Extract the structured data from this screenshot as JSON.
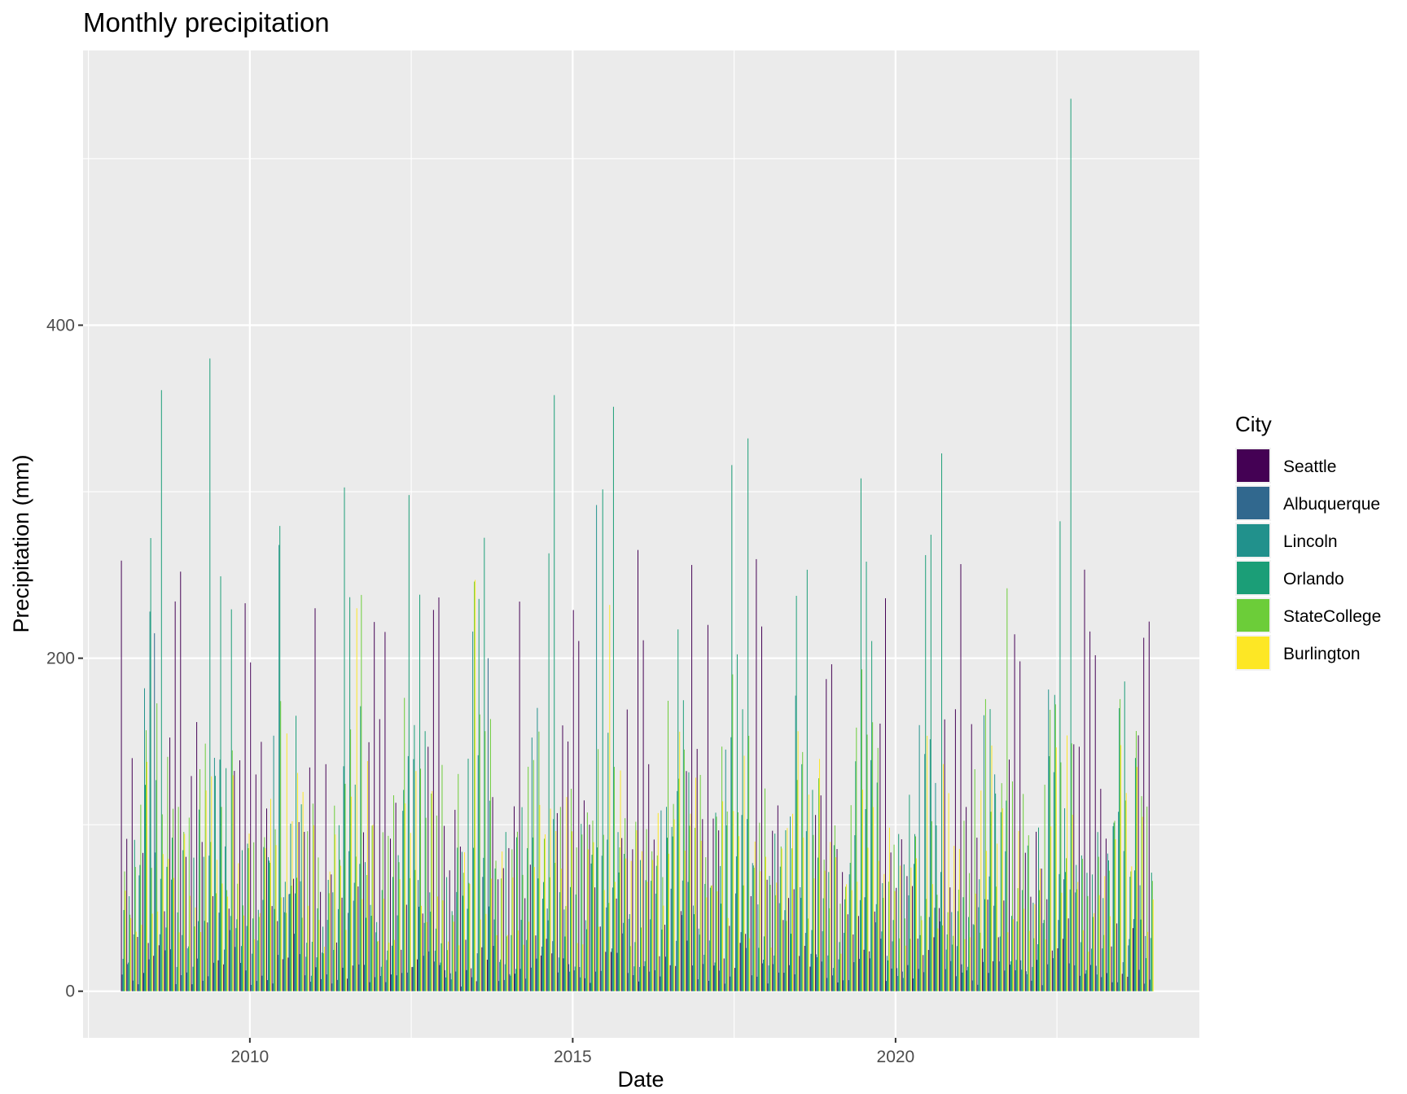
{
  "chart_data": {
    "type": "bar",
    "title": "Monthly precipitation",
    "xlabel": "Date",
    "ylabel": "Precipitation (mm)",
    "x_ticks": [
      "2010",
      "2015",
      "2020"
    ],
    "y_ticks": [
      "0",
      "200",
      "400"
    ],
    "ylim": [
      -28,
      565
    ],
    "xlim": [
      "2007-06-01",
      "2024-09-15"
    ],
    "date_range": [
      "2008-01",
      "2023-12"
    ],
    "grid": true,
    "bar_layout": "dodged",
    "legend": {
      "title": "City",
      "position": "right"
    },
    "series": [
      {
        "name": "Seattle",
        "color": "#440154",
        "typical_values": [
          164,
          132,
          101,
          79,
          52,
          38,
          16,
          21,
          41,
          99,
          159,
          162
        ],
        "peaks": [
          {
            "date": "2016-01",
            "value": 265
          },
          {
            "date": "2016-11",
            "value": 256
          },
          {
            "date": "2009-12",
            "value": 233
          },
          {
            "date": "2011-01",
            "value": 230
          },
          {
            "date": "2012-11",
            "value": 229
          },
          {
            "date": "2014-03",
            "value": 234
          },
          {
            "date": "2023-12",
            "value": 222
          },
          {
            "date": "2017-02",
            "value": 220
          }
        ]
      },
      {
        "name": "Albuquerque",
        "color": "#31688e",
        "typical_values": [
          10,
          10,
          12,
          8,
          11,
          14,
          38,
          42,
          29,
          22,
          12,
          14
        ],
        "peaks": [
          {
            "date": "2013-09",
            "value": 200
          },
          {
            "date": "2008-07",
            "value": 215
          }
        ]
      },
      {
        "name": "Lincoln",
        "color": "#21918c",
        "typical_values": [
          18,
          20,
          42,
          70,
          118,
          120,
          92,
          86,
          72,
          50,
          32,
          24
        ],
        "peaks": [
          {
            "date": "2008-06",
            "value": 228
          },
          {
            "date": "2010-06",
            "value": 268
          },
          {
            "date": "2013-06",
            "value": 216
          },
          {
            "date": "2015-05",
            "value": 292
          }
        ]
      },
      {
        "name": "Orlando",
        "color": "#1b9e77",
        "typical_values": [
          58,
          62,
          78,
          64,
          86,
          190,
          185,
          182,
          150,
          80,
          52,
          60
        ],
        "peaks": [
          {
            "date": "2009-05",
            "value": 380
          },
          {
            "date": "2008-08",
            "value": 361
          },
          {
            "date": "2014-09",
            "value": 358
          },
          {
            "date": "2015-08",
            "value": 351
          },
          {
            "date": "2017-09",
            "value": 332
          },
          {
            "date": "2020-09",
            "value": 323
          },
          {
            "date": "2017-06",
            "value": 316
          },
          {
            "date": "2019-06",
            "value": 308
          },
          {
            "date": "2022-09",
            "value": 536
          },
          {
            "date": "2012-06",
            "value": 298
          }
        ]
      },
      {
        "name": "StateCollege",
        "color": "#6ccd39",
        "typical_values": [
          64,
          62,
          84,
          94,
          108,
          118,
          112,
          98,
          104,
          84,
          76,
          84
        ],
        "peaks": [
          {
            "date": "2011-09",
            "value": 238
          },
          {
            "date": "2013-06",
            "value": 246
          },
          {
            "date": "2021-09",
            "value": 242
          }
        ]
      },
      {
        "name": "Burlington",
        "color": "#fde725",
        "typical_values": [
          52,
          46,
          58,
          74,
          86,
          98,
          102,
          96,
          88,
          90,
          78,
          62
        ],
        "peaks": [
          {
            "date": "2011-08",
            "value": 230
          },
          {
            "date": "2015-07",
            "value": 232
          },
          {
            "date": "2013-06",
            "value": 247
          }
        ]
      }
    ]
  }
}
